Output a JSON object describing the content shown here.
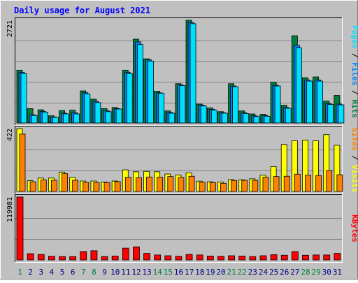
{
  "title": "Daily usage for August 2021",
  "colors": {
    "background": "#C0C0C0",
    "title": "#0000FF",
    "hits": "#008040",
    "files": "#0080FF",
    "pages": "#00E0FF",
    "sites": "#FF8000",
    "visits": "#FFFF00",
    "kbytes": "#FF0000",
    "weekend_day_label": "#008040",
    "weekday_label": "#000080"
  },
  "chart_data": [
    {
      "type": "bar",
      "panel": "hits_files_pages",
      "scale_label": "2721",
      "ylim": [
        0,
        2721
      ],
      "right_labels": [
        "Pages",
        "Files",
        "Hits"
      ],
      "categories": [
        "1",
        "2",
        "3",
        "4",
        "5",
        "6",
        "7",
        "8",
        "9",
        "10",
        "11",
        "12",
        "13",
        "14",
        "15",
        "16",
        "17",
        "18",
        "19",
        "20",
        "21",
        "22",
        "23",
        "24",
        "25",
        "26",
        "27",
        "28",
        "29",
        "30",
        "31"
      ],
      "series": [
        {
          "name": "Hits",
          "values": [
            1400,
            380,
            350,
            190,
            330,
            340,
            850,
            630,
            380,
            410,
            1400,
            2220,
            1700,
            840,
            320,
            1040,
            2721,
            500,
            400,
            300,
            1040,
            320,
            240,
            230,
            1080,
            470,
            2310,
            1200,
            1220,
            580,
            730
          ]
        },
        {
          "name": "Files",
          "values": [
            1340,
            220,
            310,
            160,
            260,
            270,
            800,
            570,
            330,
            380,
            1340,
            2150,
            1670,
            800,
            280,
            1010,
            2660,
            470,
            360,
            270,
            980,
            270,
            190,
            200,
            1000,
            410,
            2060,
            1140,
            1140,
            510,
            500
          ]
        },
        {
          "name": "Pages",
          "values": [
            1310,
            200,
            290,
            150,
            240,
            240,
            770,
            540,
            300,
            370,
            1310,
            2080,
            1640,
            790,
            260,
            990,
            2630,
            450,
            340,
            260,
            960,
            250,
            170,
            180,
            980,
            390,
            1990,
            1110,
            1110,
            490,
            480
          ]
        }
      ]
    },
    {
      "type": "bar",
      "panel": "visits_sites",
      "scale_label": "422",
      "ylim": [
        0,
        422
      ],
      "right_labels": [
        "Sites",
        "Visits"
      ],
      "categories": [
        "1",
        "2",
        "3",
        "4",
        "5",
        "6",
        "7",
        "8",
        "9",
        "10",
        "11",
        "12",
        "13",
        "14",
        "15",
        "16",
        "17",
        "18",
        "19",
        "20",
        "21",
        "22",
        "23",
        "24",
        "25",
        "26",
        "27",
        "28",
        "29",
        "30",
        "31"
      ],
      "series": [
        {
          "name": "Visits",
          "values": [
            422,
            72,
            90,
            90,
            130,
            95,
            70,
            70,
            63,
            70,
            145,
            132,
            135,
            132,
            117,
            111,
            125,
            69,
            65,
            63,
            80,
            78,
            85,
            109,
            167,
            315,
            340,
            345,
            340,
            381,
            310
          ]
        },
        {
          "name": "Sites",
          "values": [
            385,
            65,
            77,
            75,
            120,
            75,
            61,
            60,
            60,
            66,
            95,
            92,
            97,
            96,
            100,
            94,
            102,
            62,
            60,
            55,
            74,
            75,
            75,
            96,
            100,
            102,
            116,
            110,
            107,
            140,
            112
          ]
        }
      ]
    },
    {
      "type": "bar",
      "panel": "kbytes",
      "scale_label": "119981",
      "ylim": [
        0,
        119981
      ],
      "right_labels": [
        "KBytes"
      ],
      "categories": [
        "1",
        "2",
        "3",
        "4",
        "5",
        "6",
        "7",
        "8",
        "9",
        "10",
        "11",
        "12",
        "13",
        "14",
        "15",
        "16",
        "17",
        "18",
        "19",
        "20",
        "21",
        "22",
        "23",
        "24",
        "25",
        "26",
        "27",
        "28",
        "29",
        "30",
        "31"
      ],
      "series": [
        {
          "name": "KBytes",
          "values": [
            119981,
            12000,
            10500,
            7000,
            6500,
            6500,
            16000,
            17500,
            6500,
            7500,
            22500,
            25000,
            12500,
            9500,
            8000,
            7000,
            10500,
            9500,
            7500,
            7000,
            8000,
            7500,
            6500,
            8000,
            10000,
            9000,
            16000,
            9000,
            9500,
            9500,
            12500
          ]
        }
      ]
    }
  ],
  "day_labels": [
    "1",
    "2",
    "3",
    "4",
    "5",
    "6",
    "7",
    "8",
    "9",
    "10",
    "11",
    "12",
    "13",
    "14",
    "15",
    "16",
    "17",
    "18",
    "19",
    "20",
    "21",
    "22",
    "23",
    "24",
    "25",
    "26",
    "27",
    "28",
    "29",
    "30",
    "31"
  ],
  "weekend_days": [
    "1",
    "7",
    "8",
    "14",
    "15",
    "21",
    "22",
    "28",
    "29"
  ]
}
